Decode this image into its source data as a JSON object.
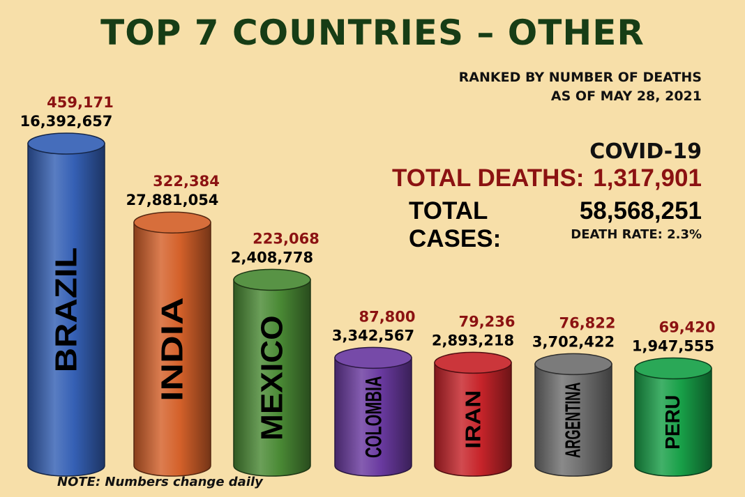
{
  "title": "TOP 7 COUNTRIES – OTHER",
  "subtitle_line1": "RANKED BY NUMBER OF DEATHS",
  "subtitle_line2": "AS OF MAY 28, 2021",
  "summary": {
    "heading": "COVID-19",
    "deaths_label": "TOTAL DEATHS:",
    "deaths_value": "1,317,901",
    "cases_label": "TOTAL CASES:",
    "cases_value": "58,568,251",
    "death_rate_text": "DEATH RATE:  2.3%"
  },
  "note": "NOTE:  Numbers change daily",
  "colors": {
    "background": "#f7dfa9",
    "title": "#173d16",
    "deaths_text": "#8b1212"
  },
  "chart_data": {
    "type": "bar",
    "categories": [
      "BRAZIL",
      "INDIA",
      "MEXICO",
      "COLOMBIA",
      "IRAN",
      "ARGENTINA",
      "PERU"
    ],
    "series": [
      {
        "name": "Deaths",
        "values": [
          459171,
          322384,
          223068,
          87800,
          79236,
          76822,
          69420
        ]
      },
      {
        "name": "Cases",
        "values": [
          16392657,
          27881054,
          2408778,
          3342567,
          2893218,
          3702422,
          1947555
        ]
      }
    ],
    "death_labels": [
      "459,171",
      "322,384",
      "223,068",
      "87,800",
      "79,236",
      "76,822",
      "69,420"
    ],
    "case_labels": [
      "16,392,657",
      "27,881,054",
      "2,408,778",
      "3,342,567",
      "2,893,218",
      "3,702,422",
      "1,947,555"
    ],
    "bar_colors": [
      "#3560b5",
      "#d4612a",
      "#4a8a35",
      "#6a3aa0",
      "#c7242a",
      "#707070",
      "#18a048"
    ],
    "bar_height_basis": "Deaths",
    "legend": "none",
    "grid": false
  }
}
